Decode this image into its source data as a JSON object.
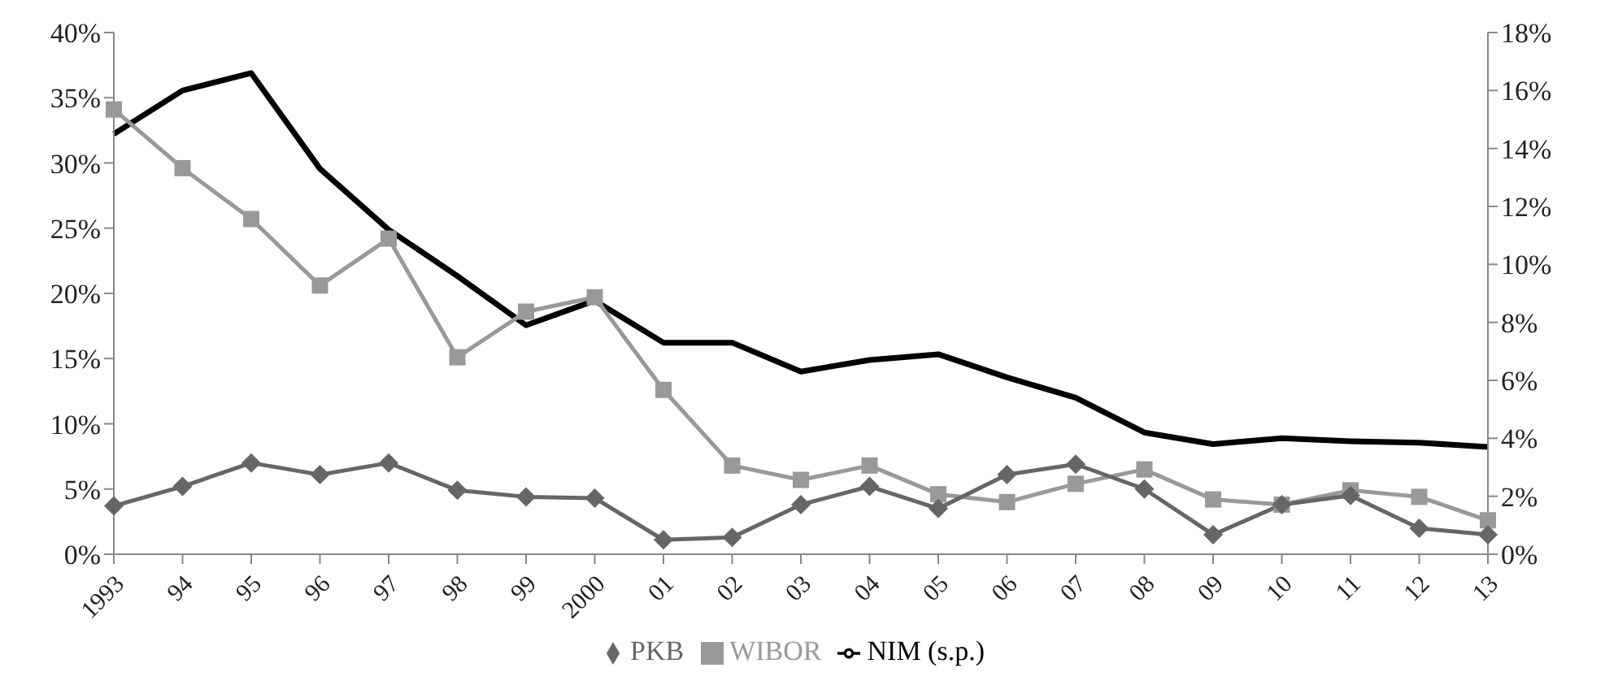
{
  "chart_data": {
    "type": "line",
    "categories": [
      "1993",
      "94",
      "95",
      "96",
      "97",
      "98",
      "99",
      "2000",
      "01",
      "02",
      "03",
      "04",
      "05",
      "06",
      "07",
      "08",
      "09",
      "10",
      "11",
      "12",
      "13"
    ],
    "series": [
      {
        "name": "PKB",
        "color": "#666666",
        "marker": "diamond",
        "values": [
          3.7,
          5.2,
          7.0,
          6.1,
          7.0,
          4.9,
          4.4,
          4.3,
          1.1,
          1.3,
          3.8,
          5.2,
          3.5,
          6.1,
          6.9,
          5.0,
          1.5,
          3.8,
          4.5,
          2.0,
          1.5
        ]
      },
      {
        "name": "WIBOR",
        "color": "#999999",
        "marker": "square",
        "values": [
          34.1,
          29.6,
          25.7,
          20.6,
          24.2,
          15.1,
          18.6,
          19.7,
          12.6,
          6.8,
          5.7,
          6.8,
          4.6,
          4.0,
          5.4,
          6.5,
          4.2,
          3.8,
          4.9,
          4.4,
          2.6
        ]
      },
      {
        "name": "NIM (s.p.)",
        "color": "#000000",
        "marker": "none",
        "axis": "y2",
        "values": [
          14.5,
          16.0,
          16.6,
          13.3,
          11.2,
          9.6,
          7.9,
          8.75,
          7.3,
          7.3,
          6.3,
          6.7,
          6.9,
          6.1,
          5.4,
          4.2,
          3.8,
          4.0,
          3.9,
          3.85,
          3.7
        ]
      }
    ],
    "ylim": [
      0,
      40
    ],
    "yticks": [
      {
        "value": 0,
        "label": "0%"
      },
      {
        "value": 5,
        "label": "5%"
      },
      {
        "value": 10,
        "label": "10%"
      },
      {
        "value": 15,
        "label": "15%"
      },
      {
        "value": 20,
        "label": "20%"
      },
      {
        "value": 25,
        "label": "25%"
      },
      {
        "value": 30,
        "label": "30%"
      },
      {
        "value": 35,
        "label": "35%"
      },
      {
        "value": 40,
        "label": "40%"
      }
    ],
    "y2lim": [
      0,
      18
    ],
    "y2ticks": [
      {
        "value": 0,
        "label": "0%"
      },
      {
        "value": 2,
        "label": "2%"
      },
      {
        "value": 4,
        "label": "4%"
      },
      {
        "value": 6,
        "label": "6%"
      },
      {
        "value": 8,
        "label": "8%"
      },
      {
        "value": 10,
        "label": "10%"
      },
      {
        "value": 12,
        "label": "12%"
      },
      {
        "value": 14,
        "label": "14%"
      },
      {
        "value": 16,
        "label": "16%"
      },
      {
        "value": 18,
        "label": "18%"
      }
    ],
    "grid": false,
    "legend": "bottom"
  }
}
